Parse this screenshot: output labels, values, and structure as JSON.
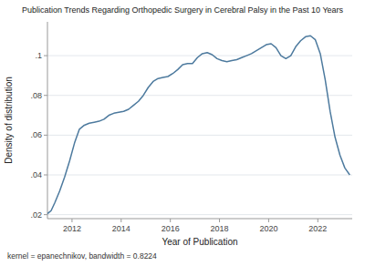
{
  "chart_data": {
    "type": "line",
    "title": "Publication Trends Regarding Orthopedic Surgery in Cerebral Palsy in the Past 10 Years",
    "x_label": "Year of Publication",
    "y_label": "Density of distribution",
    "annotations": [
      "kernel = epanechnikov, bandwidth = 0.8224"
    ],
    "color": "#4d7a9e",
    "grid": true,
    "xlim": [
      2011.0,
      2023.4
    ],
    "ylim": [
      0.018,
      0.117
    ],
    "xticks": [
      2012,
      2014,
      2016,
      2018,
      2020,
      2022
    ],
    "yticks": [
      {
        "value": 0.02,
        "label": ".02"
      },
      {
        "value": 0.04,
        "label": ".04"
      },
      {
        "value": 0.06,
        "label": ".06"
      },
      {
        "value": 0.08,
        "label": ".08"
      },
      {
        "value": 0.1,
        "label": ".1"
      }
    ],
    "x": [
      2011.0,
      2011.15,
      2011.3,
      2011.5,
      2011.7,
      2011.9,
      2012.1,
      2012.3,
      2012.5,
      2012.7,
      2012.9,
      2013.1,
      2013.3,
      2013.5,
      2013.7,
      2013.9,
      2014.1,
      2014.3,
      2014.5,
      2014.7,
      2014.9,
      2015.1,
      2015.3,
      2015.5,
      2015.7,
      2015.9,
      2016.1,
      2016.3,
      2016.5,
      2016.7,
      2016.9,
      2017.1,
      2017.3,
      2017.5,
      2017.7,
      2017.9,
      2018.1,
      2018.3,
      2018.5,
      2018.7,
      2018.9,
      2019.1,
      2019.3,
      2019.5,
      2019.7,
      2019.9,
      2020.1,
      2020.3,
      2020.5,
      2020.7,
      2020.9,
      2021.1,
      2021.3,
      2021.5,
      2021.7,
      2021.9,
      2022.1,
      2022.3,
      2022.5,
      2022.7,
      2022.9,
      2023.1,
      2023.3
    ],
    "values": [
      0.0205,
      0.022,
      0.026,
      0.032,
      0.039,
      0.047,
      0.056,
      0.063,
      0.065,
      0.066,
      0.0665,
      0.067,
      0.068,
      0.07,
      0.071,
      0.0715,
      0.072,
      0.073,
      0.075,
      0.077,
      0.08,
      0.084,
      0.087,
      0.0885,
      0.089,
      0.0895,
      0.091,
      0.093,
      0.0955,
      0.096,
      0.096,
      0.099,
      0.101,
      0.1015,
      0.1005,
      0.0985,
      0.0975,
      0.097,
      0.0975,
      0.098,
      0.099,
      0.1,
      0.101,
      0.1025,
      0.104,
      0.1055,
      0.106,
      0.104,
      0.1,
      0.0985,
      0.1,
      0.1045,
      0.1075,
      0.1095,
      0.11,
      0.108,
      0.101,
      0.088,
      0.072,
      0.059,
      0.05,
      0.0435,
      0.04
    ]
  }
}
